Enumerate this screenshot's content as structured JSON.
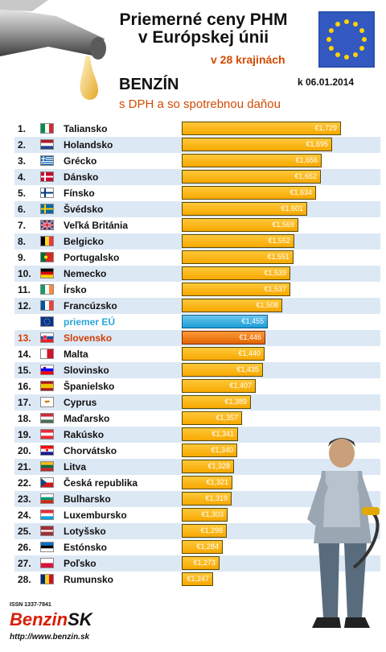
{
  "header": {
    "title_line1": "Priemerné ceny PHM",
    "title_line2": "v Európskej únii",
    "subtitle": "v 28 krajinách",
    "date": "k 06.01.2014",
    "fuel": "BENZÍN",
    "fuel_sub": "s DPH a so spotrebnou daňou"
  },
  "footer": {
    "issn": "ISSN 1337-7841",
    "logo_part1": "Benzin",
    "logo_part2": "SK",
    "url": "http://www.benzin.sk"
  },
  "colors": {
    "bar": "#f7a800",
    "eu": "#1a9ed6",
    "slovakia": "#e26300",
    "row_alt": "#dde8f5"
  },
  "chart_data": {
    "type": "bar",
    "orientation": "horizontal",
    "currency": "€",
    "rows": [
      {
        "rank": "1.",
        "country": "Taliansko",
        "value": "€1,729",
        "num": 1.729,
        "flag": "it"
      },
      {
        "rank": "2.",
        "country": "Holandsko",
        "value": "€1,695",
        "num": 1.695,
        "flag": "nl"
      },
      {
        "rank": "3.",
        "country": "Grécko",
        "value": "€1,656",
        "num": 1.656,
        "flag": "gr"
      },
      {
        "rank": "4.",
        "country": "Dánsko",
        "value": "€1,652",
        "num": 1.652,
        "flag": "dk"
      },
      {
        "rank": "5.",
        "country": "Fínsko",
        "value": "€1,634",
        "num": 1.634,
        "flag": "fi"
      },
      {
        "rank": "6.",
        "country": "Švédsko",
        "value": "€1,601",
        "num": 1.601,
        "flag": "se"
      },
      {
        "rank": "7.",
        "country": "Veľká Británia",
        "value": "€1,569",
        "num": 1.569,
        "flag": "gb"
      },
      {
        "rank": "8.",
        "country": "Belgicko",
        "value": "€1,552",
        "num": 1.552,
        "flag": "be"
      },
      {
        "rank": "9.",
        "country": "Portugalsko",
        "value": "€1,551",
        "num": 1.551,
        "flag": "pt"
      },
      {
        "rank": "10.",
        "country": "Nemecko",
        "value": "€1,539",
        "num": 1.539,
        "flag": "de"
      },
      {
        "rank": "11.",
        "country": "Írsko",
        "value": "€1,537",
        "num": 1.537,
        "flag": "ie"
      },
      {
        "rank": "12.",
        "country": "Francúzsko",
        "value": "€1,508",
        "num": 1.508,
        "flag": "fr"
      },
      {
        "rank": "",
        "country": "priemer EÚ",
        "value": "€1,455",
        "num": 1.455,
        "flag": "eu",
        "kind": "eu"
      },
      {
        "rank": "13.",
        "country": "Slovensko",
        "value": "€1,446",
        "num": 1.446,
        "flag": "sk",
        "kind": "sk"
      },
      {
        "rank": "14.",
        "country": "Malta",
        "value": "€1,440",
        "num": 1.44,
        "flag": "mt"
      },
      {
        "rank": "15.",
        "country": "Slovinsko",
        "value": "€1,435",
        "num": 1.435,
        "flag": "si"
      },
      {
        "rank": "16.",
        "country": "Španielsko",
        "value": "€1,407",
        "num": 1.407,
        "flag": "es"
      },
      {
        "rank": "17.",
        "country": "Cyprus",
        "value": "€1,389",
        "num": 1.389,
        "flag": "cy"
      },
      {
        "rank": "18.",
        "country": "Maďarsko",
        "value": "€1,357",
        "num": 1.357,
        "flag": "hu"
      },
      {
        "rank": "19.",
        "country": "Rakúsko",
        "value": "€1,341",
        "num": 1.341,
        "flag": "at"
      },
      {
        "rank": "20.",
        "country": "Chorvátsko",
        "value": "€1,340",
        "num": 1.34,
        "flag": "hr"
      },
      {
        "rank": "21.",
        "country": "Litva",
        "value": "€1,328",
        "num": 1.328,
        "flag": "lt"
      },
      {
        "rank": "22.",
        "country": "Česká republika",
        "value": "€1,321",
        "num": 1.321,
        "flag": "cz"
      },
      {
        "rank": "23.",
        "country": "Bulharsko",
        "value": "€1,319",
        "num": 1.319,
        "flag": "bg"
      },
      {
        "rank": "24.",
        "country": "Luxembursko",
        "value": "€1,303",
        "num": 1.303,
        "flag": "lu"
      },
      {
        "rank": "25.",
        "country": "Lotyšsko",
        "value": "€1,298",
        "num": 1.298,
        "flag": "lv"
      },
      {
        "rank": "26.",
        "country": "Estónsko",
        "value": "€1,284",
        "num": 1.284,
        "flag": "ee"
      },
      {
        "rank": "27.",
        "country": "Poľsko",
        "value": "€1,273",
        "num": 1.273,
        "flag": "pl"
      },
      {
        "rank": "28.",
        "country": "Rumunsko",
        "value": "€1,247",
        "num": 1.247,
        "flag": "ro"
      }
    ]
  }
}
